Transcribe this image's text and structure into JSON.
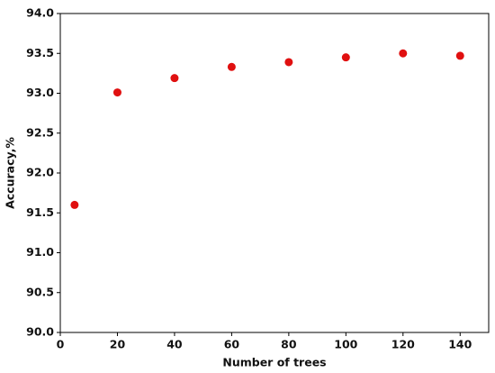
{
  "chart_data": {
    "type": "scatter",
    "x_label": "Number of trees",
    "y_label": "Accuracy,%",
    "x": [
      5,
      20,
      40,
      60,
      80,
      100,
      120,
      140
    ],
    "series": [
      {
        "color": "#e01010",
        "values": [
          91.6,
          93.01,
          93.19,
          93.33,
          93.39,
          93.45,
          93.5,
          93.47
        ]
      }
    ],
    "xlim": [
      0,
      150
    ],
    "xticks": [
      0,
      20,
      40,
      60,
      80,
      100,
      120,
      140
    ],
    "ylim": [
      90,
      94
    ],
    "yticks": [
      {
        "value": 90,
        "label": "90.0"
      },
      {
        "value": 90.5,
        "label": "90.5"
      },
      {
        "value": 91,
        "label": "91.0"
      },
      {
        "value": 91.5,
        "label": "91.5"
      },
      {
        "value": 92,
        "label": "92.0"
      },
      {
        "value": 92.5,
        "label": "92.5"
      },
      {
        "value": 93,
        "label": "93.0"
      },
      {
        "value": 93.5,
        "label": "93.5"
      },
      {
        "value": 94,
        "label": "94.0"
      }
    ],
    "grid": false
  }
}
